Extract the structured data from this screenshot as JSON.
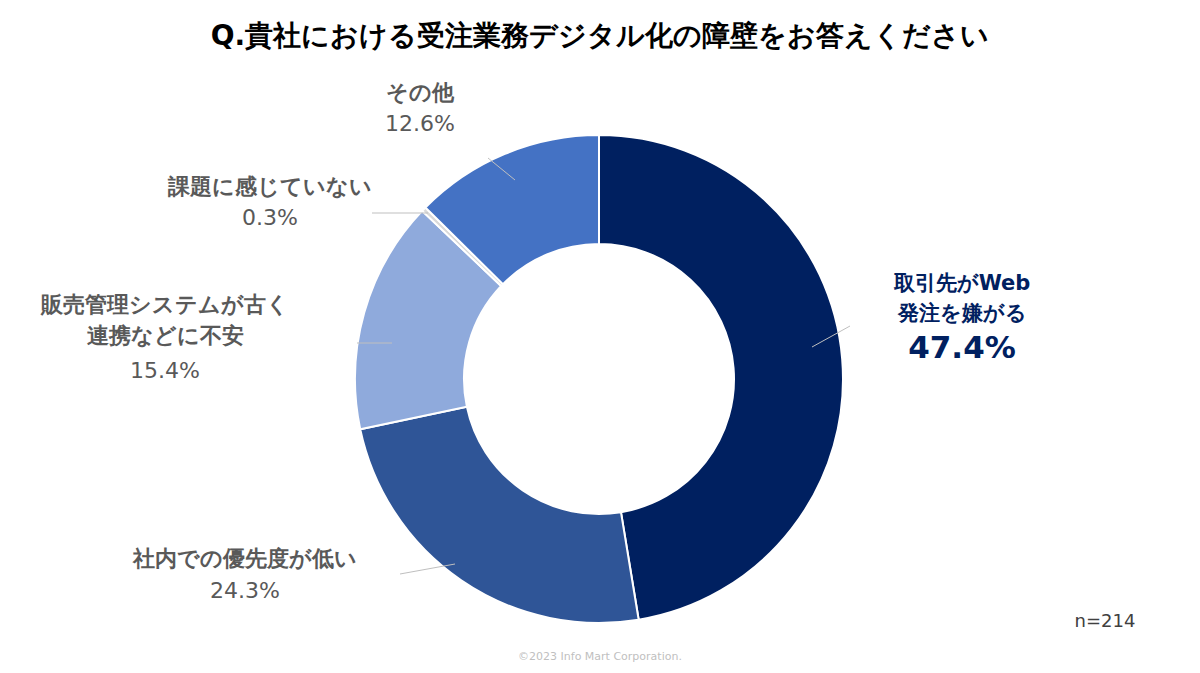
{
  "chart_data": {
    "type": "donut",
    "title": "Q.貴社における受注業務デジタル化の障壁をお答えください",
    "categories": [
      "取引先がWeb\n発注を嫌がる",
      "社内での優先度が低い",
      "販売管理システムが古く\n連携などに不安",
      "課題に感じていない",
      "その他"
    ],
    "values": [
      47.4,
      24.3,
      15.4,
      0.3,
      12.6
    ],
    "value_labels": [
      "47.4%",
      "24.3%",
      "15.4%",
      "0.3%",
      "12.6%"
    ],
    "colors": [
      "#002060",
      "#2f5597",
      "#8faadc",
      "#d9d9d9",
      "#4472c4"
    ],
    "data_labels": true,
    "annotations": [
      "n=214",
      "©2023 Info Mart Corporation."
    ]
  }
}
